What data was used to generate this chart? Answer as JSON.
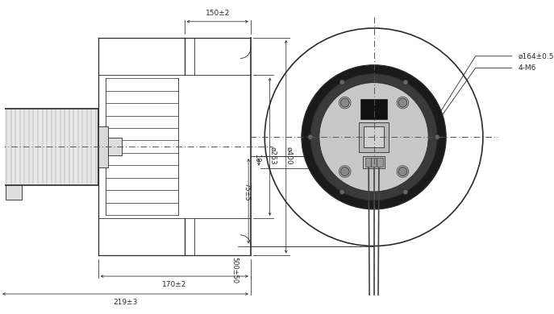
{
  "bg_color": "#ffffff",
  "lc": "#2a2a2a",
  "clc": "#555555",
  "fig_width": 6.87,
  "fig_height": 3.9,
  "annotations_left": {
    "dim_150": "150±2",
    "dim_170": "170±2",
    "dim_219": "219±3",
    "dim_263": "ø263",
    "dim_400": "ø400"
  },
  "annotations_right": {
    "dim_164": "ø164±0.5",
    "dim_4M6": "4-M6",
    "dim_500": "500±50",
    "dim_75": "75±5",
    "dim_10": "10"
  }
}
